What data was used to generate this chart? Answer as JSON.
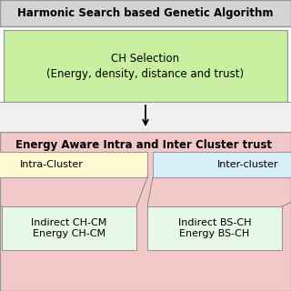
{
  "title_box": {
    "text": "Harmonic Search based Genetic Algorithm",
    "bg_color": "#d4d4d4",
    "text_color": "#000000",
    "fontsize": 8.5,
    "bold": true
  },
  "green_box": {
    "text": "CH Selection\n(Energy, density, distance and trust)",
    "bg_color": "#c8f0a0",
    "text_color": "#000000",
    "fontsize": 8.5,
    "bold": false
  },
  "white_gap_color": "#f0f0f0",
  "pink_section": {
    "title": "Energy Aware Intra and Inter Cluster trust",
    "bg_color": "#f2c8c8",
    "title_color": "#000000",
    "title_fontsize": 8.5,
    "title_bold": true
  },
  "intra_box": {
    "text": "Intra-Cluster",
    "bg_color": "#fef9d0",
    "text_color": "#000000",
    "fontsize": 8
  },
  "inter_box": {
    "text": "Inter-cluster",
    "bg_color": "#d8eef8",
    "text_color": "#000000",
    "fontsize": 8
  },
  "indirect_ch_box": {
    "text": "Indirect CH-CM\nEnergy CH-CM",
    "bg_color": "#e8f8e8",
    "text_color": "#000000",
    "fontsize": 8
  },
  "indirect_bs_box": {
    "text": "Indirect BS-CH\nEnergy BS-CH",
    "bg_color": "#e8f8e8",
    "text_color": "#000000",
    "fontsize": 8
  },
  "border_color": "#999999",
  "arrow_color": "#000000",
  "background": "#ffffff",
  "figsize": [
    3.2,
    3.2
  ],
  "dpi": 100
}
